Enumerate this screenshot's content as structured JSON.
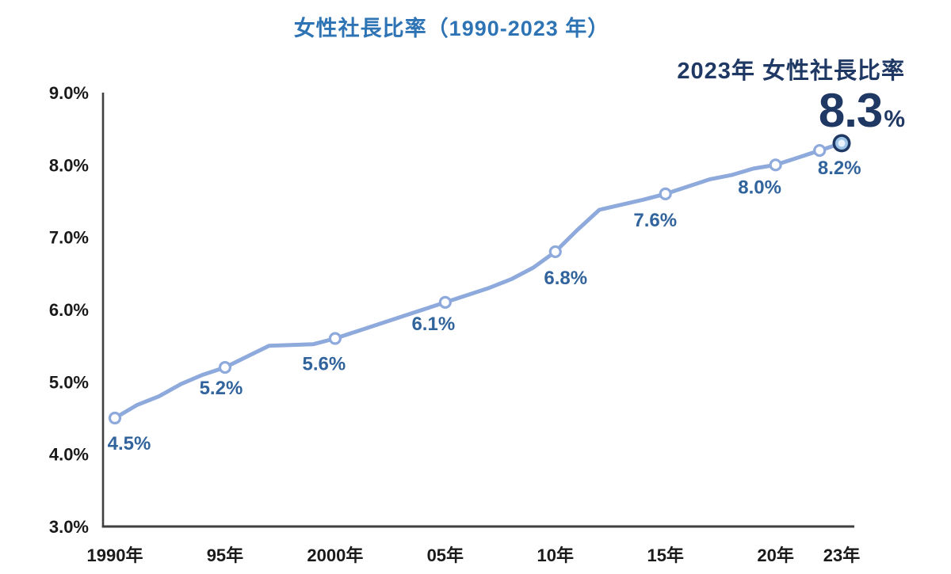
{
  "chart_data": {
    "type": "line",
    "title": "女性社長比率（1990-2023 年）",
    "xlabel": "",
    "ylabel": "",
    "ylim": [
      3.0,
      9.0
    ],
    "grid": false,
    "legend": "none",
    "y_axis": {
      "tick_values": [
        3.0,
        4.0,
        5.0,
        6.0,
        7.0,
        8.0,
        9.0
      ],
      "tick_labels": [
        "3.0%",
        "4.0%",
        "5.0%",
        "6.0%",
        "7.0%",
        "8.0%",
        "9.0%"
      ]
    },
    "x_axis": {
      "tick_years": [
        1990,
        1995,
        2000,
        2005,
        2010,
        2015,
        2020,
        2023
      ],
      "tick_labels": [
        "1990年",
        "95年",
        "2000年",
        "05年",
        "10年",
        "15年",
        "20年",
        "23年"
      ]
    },
    "series": [
      {
        "name": "女性社長比率",
        "points": [
          {
            "year": 1990,
            "value": 4.5,
            "marker": true,
            "label": "4.5%",
            "label_dx": 18,
            "label_dy": 40
          },
          {
            "year": 1991,
            "value": 4.68
          },
          {
            "year": 1992,
            "value": 4.8
          },
          {
            "year": 1993,
            "value": 4.97
          },
          {
            "year": 1994,
            "value": 5.1
          },
          {
            "year": 1995,
            "value": 5.2,
            "marker": true,
            "label": "5.2%",
            "label_dx": -5,
            "label_dy": 34
          },
          {
            "year": 1996,
            "value": 5.35
          },
          {
            "year": 1997,
            "value": 5.5
          },
          {
            "year": 1998,
            "value": 5.51
          },
          {
            "year": 1999,
            "value": 5.52
          },
          {
            "year": 2000,
            "value": 5.6,
            "marker": true,
            "label": "5.6%",
            "label_dx": -14,
            "label_dy": 40
          },
          {
            "year": 2001,
            "value": 5.7
          },
          {
            "year": 2002,
            "value": 5.8
          },
          {
            "year": 2003,
            "value": 5.9
          },
          {
            "year": 2004,
            "value": 6.0
          },
          {
            "year": 2005,
            "value": 6.1,
            "marker": true,
            "label": "6.1%",
            "label_dx": -15,
            "label_dy": 35
          },
          {
            "year": 2006,
            "value": 6.2
          },
          {
            "year": 2007,
            "value": 6.3
          },
          {
            "year": 2008,
            "value": 6.42
          },
          {
            "year": 2009,
            "value": 6.58
          },
          {
            "year": 2010,
            "value": 6.8,
            "marker": true,
            "label": "6.8%",
            "label_dx": 13,
            "label_dy": 41
          },
          {
            "year": 2011,
            "value": 7.1
          },
          {
            "year": 2012,
            "value": 7.38
          },
          {
            "year": 2013,
            "value": 7.45
          },
          {
            "year": 2014,
            "value": 7.52
          },
          {
            "year": 2015,
            "value": 7.6,
            "marker": true,
            "label": "7.6%",
            "label_dx": -13,
            "label_dy": 41
          },
          {
            "year": 2016,
            "value": 7.7
          },
          {
            "year": 2017,
            "value": 7.8
          },
          {
            "year": 2018,
            "value": 7.86
          },
          {
            "year": 2019,
            "value": 7.95
          },
          {
            "year": 2020,
            "value": 8.0,
            "marker": true,
            "label": "8.0%",
            "label_dx": -20,
            "label_dy": 36
          },
          {
            "year": 2021,
            "value": 8.1
          },
          {
            "year": 2022,
            "value": 8.2,
            "marker": true,
            "label": "8.2%",
            "label_dx": 25,
            "label_dy": 30
          },
          {
            "year": 2023,
            "value": 8.3,
            "marker": true,
            "highlight": true
          }
        ]
      }
    ]
  },
  "callout": {
    "heading": "2023年 女性社長比率",
    "value": "8.3",
    "unit": "%"
  },
  "colors": {
    "title_blue": "#2E74B5",
    "data_label_blue": "#31639C",
    "accent_navy": "#1F3864",
    "line_blue": "#8EA9DB",
    "marker_fill": "#FFFFFF",
    "highlight_mid": "#9DC3E6",
    "highlight_core": "#EAF3FB",
    "axis_line": "#3F3F3F",
    "tick_label": "#1A1A1A"
  }
}
